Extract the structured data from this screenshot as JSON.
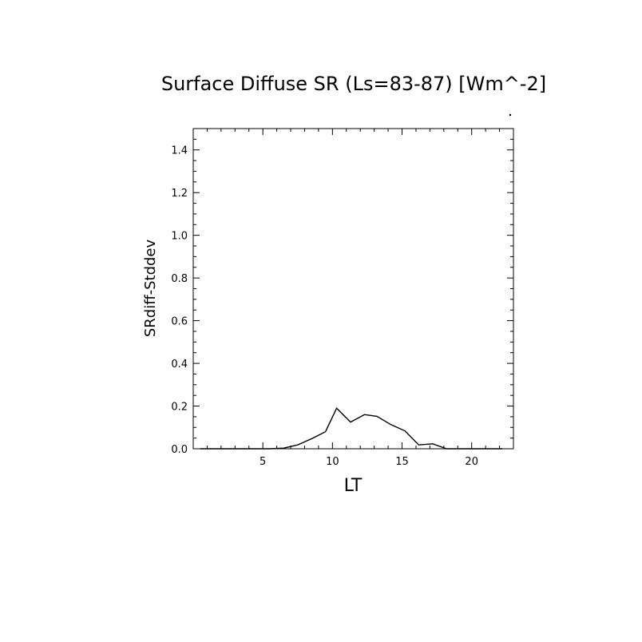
{
  "chart_data": {
    "type": "line",
    "title": "Surface Diffuse SR (Ls=83-87) [Wm^-2]",
    "xlabel": "LT",
    "ylabel": "SRdiff-Stddev",
    "xlim": [
      0,
      23
    ],
    "ylim": [
      0,
      1.5
    ],
    "xticks": [
      5,
      10,
      15,
      20
    ],
    "yticks": [
      0.0,
      0.2,
      0.4,
      0.6,
      0.8,
      1.0,
      1.2,
      1.4
    ],
    "ytick_labels": [
      "0.0",
      "0.2",
      "0.4",
      "0.6",
      "0.8",
      "1.0",
      "1.2",
      "1.4"
    ],
    "grid": false,
    "series": [
      {
        "color": "#000000",
        "x": [
          0.5,
          1.5,
          2.5,
          3.5,
          4.5,
          5.5,
          6.5,
          7.5,
          8.5,
          9.5,
          10.3,
          11.3,
          12.3,
          13.2,
          14.2,
          15.2,
          16.2,
          17.2,
          18.2,
          19.2,
          20.2,
          21.2,
          22.2
        ],
        "y": [
          0,
          0,
          0,
          0,
          0,
          0,
          0.003,
          0.018,
          0.047,
          0.08,
          0.19,
          0.125,
          0.16,
          0.152,
          0.113,
          0.084,
          0.018,
          0.023,
          0,
          0,
          0,
          0,
          0
        ]
      }
    ]
  }
}
